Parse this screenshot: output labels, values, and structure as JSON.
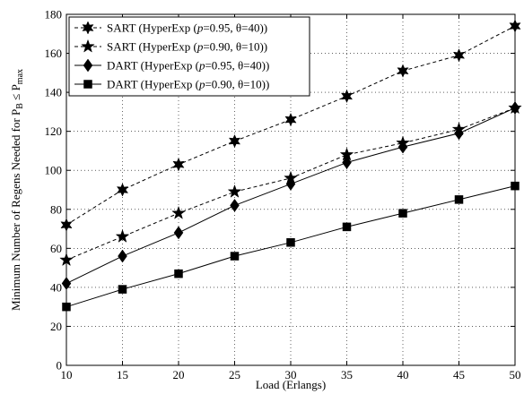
{
  "chart_data": {
    "type": "line",
    "xlabel": "Load (Erlangs)",
    "ylabel_parts": [
      "Minimum Number of Regens Needed for  P",
      "B",
      " ≤ P",
      "max"
    ],
    "x": [
      10,
      15,
      20,
      25,
      30,
      35,
      40,
      45,
      50
    ],
    "xlim": [
      10,
      50
    ],
    "ylim": [
      0,
      180
    ],
    "xticks": [
      10,
      15,
      20,
      25,
      30,
      35,
      40,
      45,
      50
    ],
    "yticks": [
      0,
      20,
      40,
      60,
      80,
      100,
      120,
      140,
      160,
      180
    ],
    "grid": true,
    "legend_position": "top-left",
    "series": [
      {
        "name": "SART (HyperExp (p=0.95, θ=40))",
        "legend": {
          "pre": "SART (HyperExp (",
          "p": "p",
          "post": "=0.95, θ=40))"
        },
        "marker": "star6",
        "line": "dashed",
        "values": [
          72,
          90,
          103,
          115,
          126,
          138,
          151,
          159,
          174
        ]
      },
      {
        "name": "SART (HyperExp (p=0.90, θ=10))",
        "legend": {
          "pre": "SART (HyperExp (",
          "p": "p",
          "post": "=0.90, θ=10))"
        },
        "marker": "star5",
        "line": "dashed",
        "values": [
          54,
          66,
          78,
          89,
          96,
          108,
          114,
          121,
          132
        ]
      },
      {
        "name": "DART (HyperExp (p=0.95, θ=40))",
        "legend": {
          "pre": "DART (HyperExp (",
          "p": "p",
          "post": "=0.95, θ=40))"
        },
        "marker": "diamond",
        "line": "solid",
        "values": [
          42,
          56,
          68,
          82,
          93,
          104,
          112,
          119,
          132
        ]
      },
      {
        "name": "DART (HyperExp (p=0.90, θ=10))",
        "legend": {
          "pre": "DART (HyperExp (",
          "p": "p",
          "post": "=0.90, θ=10))"
        },
        "marker": "square",
        "line": "solid",
        "values": [
          30,
          39,
          47,
          56,
          63,
          71,
          78,
          85,
          92
        ]
      }
    ]
  }
}
